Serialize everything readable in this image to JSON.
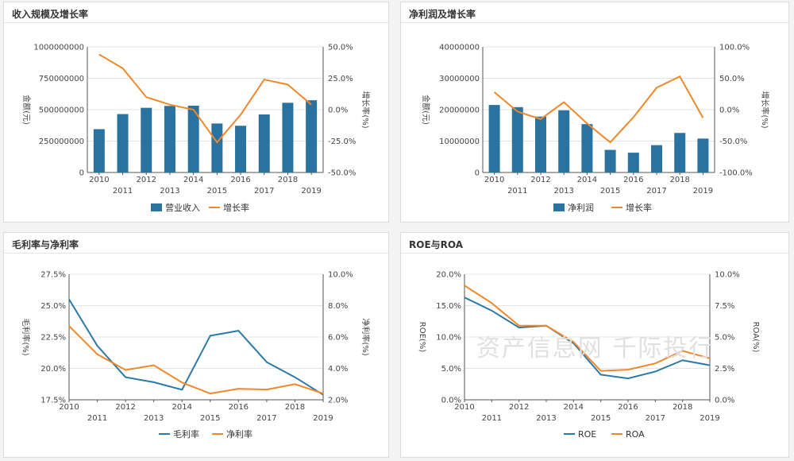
{
  "colors": {
    "bar": "#2a72a0",
    "line_primary": "#f0882a",
    "line_secondary": "#2a7aa8"
  },
  "watermark": "资产信息网 千际投行",
  "chart_data": [
    {
      "id": "revenue",
      "type": "bar",
      "title": "收入规模及增长率",
      "categories": [
        "2010",
        "2011",
        "2012",
        "2013",
        "2014",
        "2015",
        "2016",
        "2017",
        "2018",
        "2019"
      ],
      "series": [
        {
          "name": "营业收入",
          "type": "bar",
          "axis": "left",
          "values": [
            345000000,
            465000000,
            515000000,
            530000000,
            532000000,
            390000000,
            372000000,
            462000000,
            555000000,
            575000000
          ]
        },
        {
          "name": "增长率",
          "type": "line",
          "axis": "right",
          "values": [
            44,
            33,
            10,
            4,
            0,
            -26,
            -4,
            24,
            20,
            4
          ]
        }
      ],
      "y_left": {
        "label": "金额(元)",
        "min": 0,
        "max": 1000000000,
        "ticks": [
          "0",
          "250000000",
          "500000000",
          "750000000",
          "1000000000"
        ]
      },
      "y_right": {
        "label": "增长率(%)",
        "min": -50,
        "max": 50,
        "ticks": [
          "-50.0%",
          "-25.0%",
          "0.0%",
          "25.0%",
          "50.0%"
        ]
      },
      "grid": true,
      "legend": "bottom"
    },
    {
      "id": "net-profit",
      "type": "bar",
      "title": "净利润及增长率",
      "categories": [
        "2010",
        "2011",
        "2012",
        "2013",
        "2014",
        "2015",
        "2016",
        "2017",
        "2018",
        "2019"
      ],
      "series": [
        {
          "name": "净利润",
          "type": "bar",
          "axis": "left",
          "values": [
            21500000,
            20800000,
            17800000,
            19800000,
            15400000,
            7200000,
            6300000,
            8700000,
            12600000,
            10800000
          ]
        },
        {
          "name": "增长率",
          "type": "line",
          "axis": "right",
          "values": [
            28,
            -3,
            -15,
            12,
            -22,
            -52,
            -12,
            35,
            53,
            -13
          ]
        }
      ],
      "y_left": {
        "label": "金额(元)",
        "min": 0,
        "max": 40000000,
        "ticks": [
          "0",
          "10000000",
          "20000000",
          "30000000",
          "40000000"
        ]
      },
      "y_right": {
        "label": "增长率(%)",
        "min": -100,
        "max": 100,
        "ticks": [
          "-100.0%",
          "-50.0%",
          "0.0%",
          "50.0%",
          "100.0%"
        ]
      },
      "grid": true,
      "legend": "bottom"
    },
    {
      "id": "margins",
      "type": "line",
      "title": "毛利率与净利率",
      "categories": [
        "2010",
        "2011",
        "2012",
        "2013",
        "2014",
        "2015",
        "2016",
        "2017",
        "2018",
        "2019"
      ],
      "series": [
        {
          "name": "毛利率",
          "axis": "left",
          "color": "line_secondary",
          "values": [
            25.5,
            21.8,
            19.3,
            18.9,
            18.3,
            22.6,
            23.0,
            20.5,
            19.3,
            17.9
          ]
        },
        {
          "name": "净利率",
          "axis": "right",
          "color": "line_primary",
          "values": [
            6.7,
            4.9,
            3.9,
            4.2,
            3.1,
            2.4,
            2.7,
            2.65,
            3.0,
            2.4
          ]
        }
      ],
      "y_left": {
        "label": "毛利率(%)",
        "min": 17.5,
        "max": 27.5,
        "ticks": [
          "17.5%",
          "20.0%",
          "22.5%",
          "25.0%",
          "27.5%"
        ]
      },
      "y_right": {
        "label": "净利率(%)",
        "min": 2,
        "max": 10,
        "ticks": [
          "2.0%",
          "4.0%",
          "6.0%",
          "8.0%",
          "10.0%"
        ]
      },
      "grid": true,
      "legend": "bottom"
    },
    {
      "id": "roe-roa",
      "type": "line",
      "title": "ROE与ROA",
      "categories": [
        "2010",
        "2011",
        "2012",
        "2013",
        "2014",
        "2015",
        "2016",
        "2017",
        "2018",
        "2019"
      ],
      "series": [
        {
          "name": "ROE",
          "axis": "left",
          "color": "line_secondary",
          "values": [
            16.3,
            14.2,
            11.5,
            11.8,
            9.0,
            4.0,
            3.4,
            4.5,
            6.3,
            5.5
          ]
        },
        {
          "name": "ROA",
          "axis": "right",
          "color": "line_primary",
          "values": [
            9.1,
            7.7,
            5.9,
            5.9,
            4.6,
            2.3,
            2.4,
            2.9,
            3.9,
            3.3
          ]
        }
      ],
      "y_left": {
        "label": "ROE(%)",
        "min": 0,
        "max": 20,
        "ticks": [
          "0.0%",
          "5.0%",
          "10.0%",
          "15.0%",
          "20.0%"
        ]
      },
      "y_right": {
        "label": "ROA(%)",
        "min": 0,
        "max": 10,
        "ticks": [
          "0.0%",
          "2.5%",
          "5.0%",
          "7.5%",
          "10.0%"
        ]
      },
      "grid": true,
      "legend": "bottom"
    }
  ]
}
